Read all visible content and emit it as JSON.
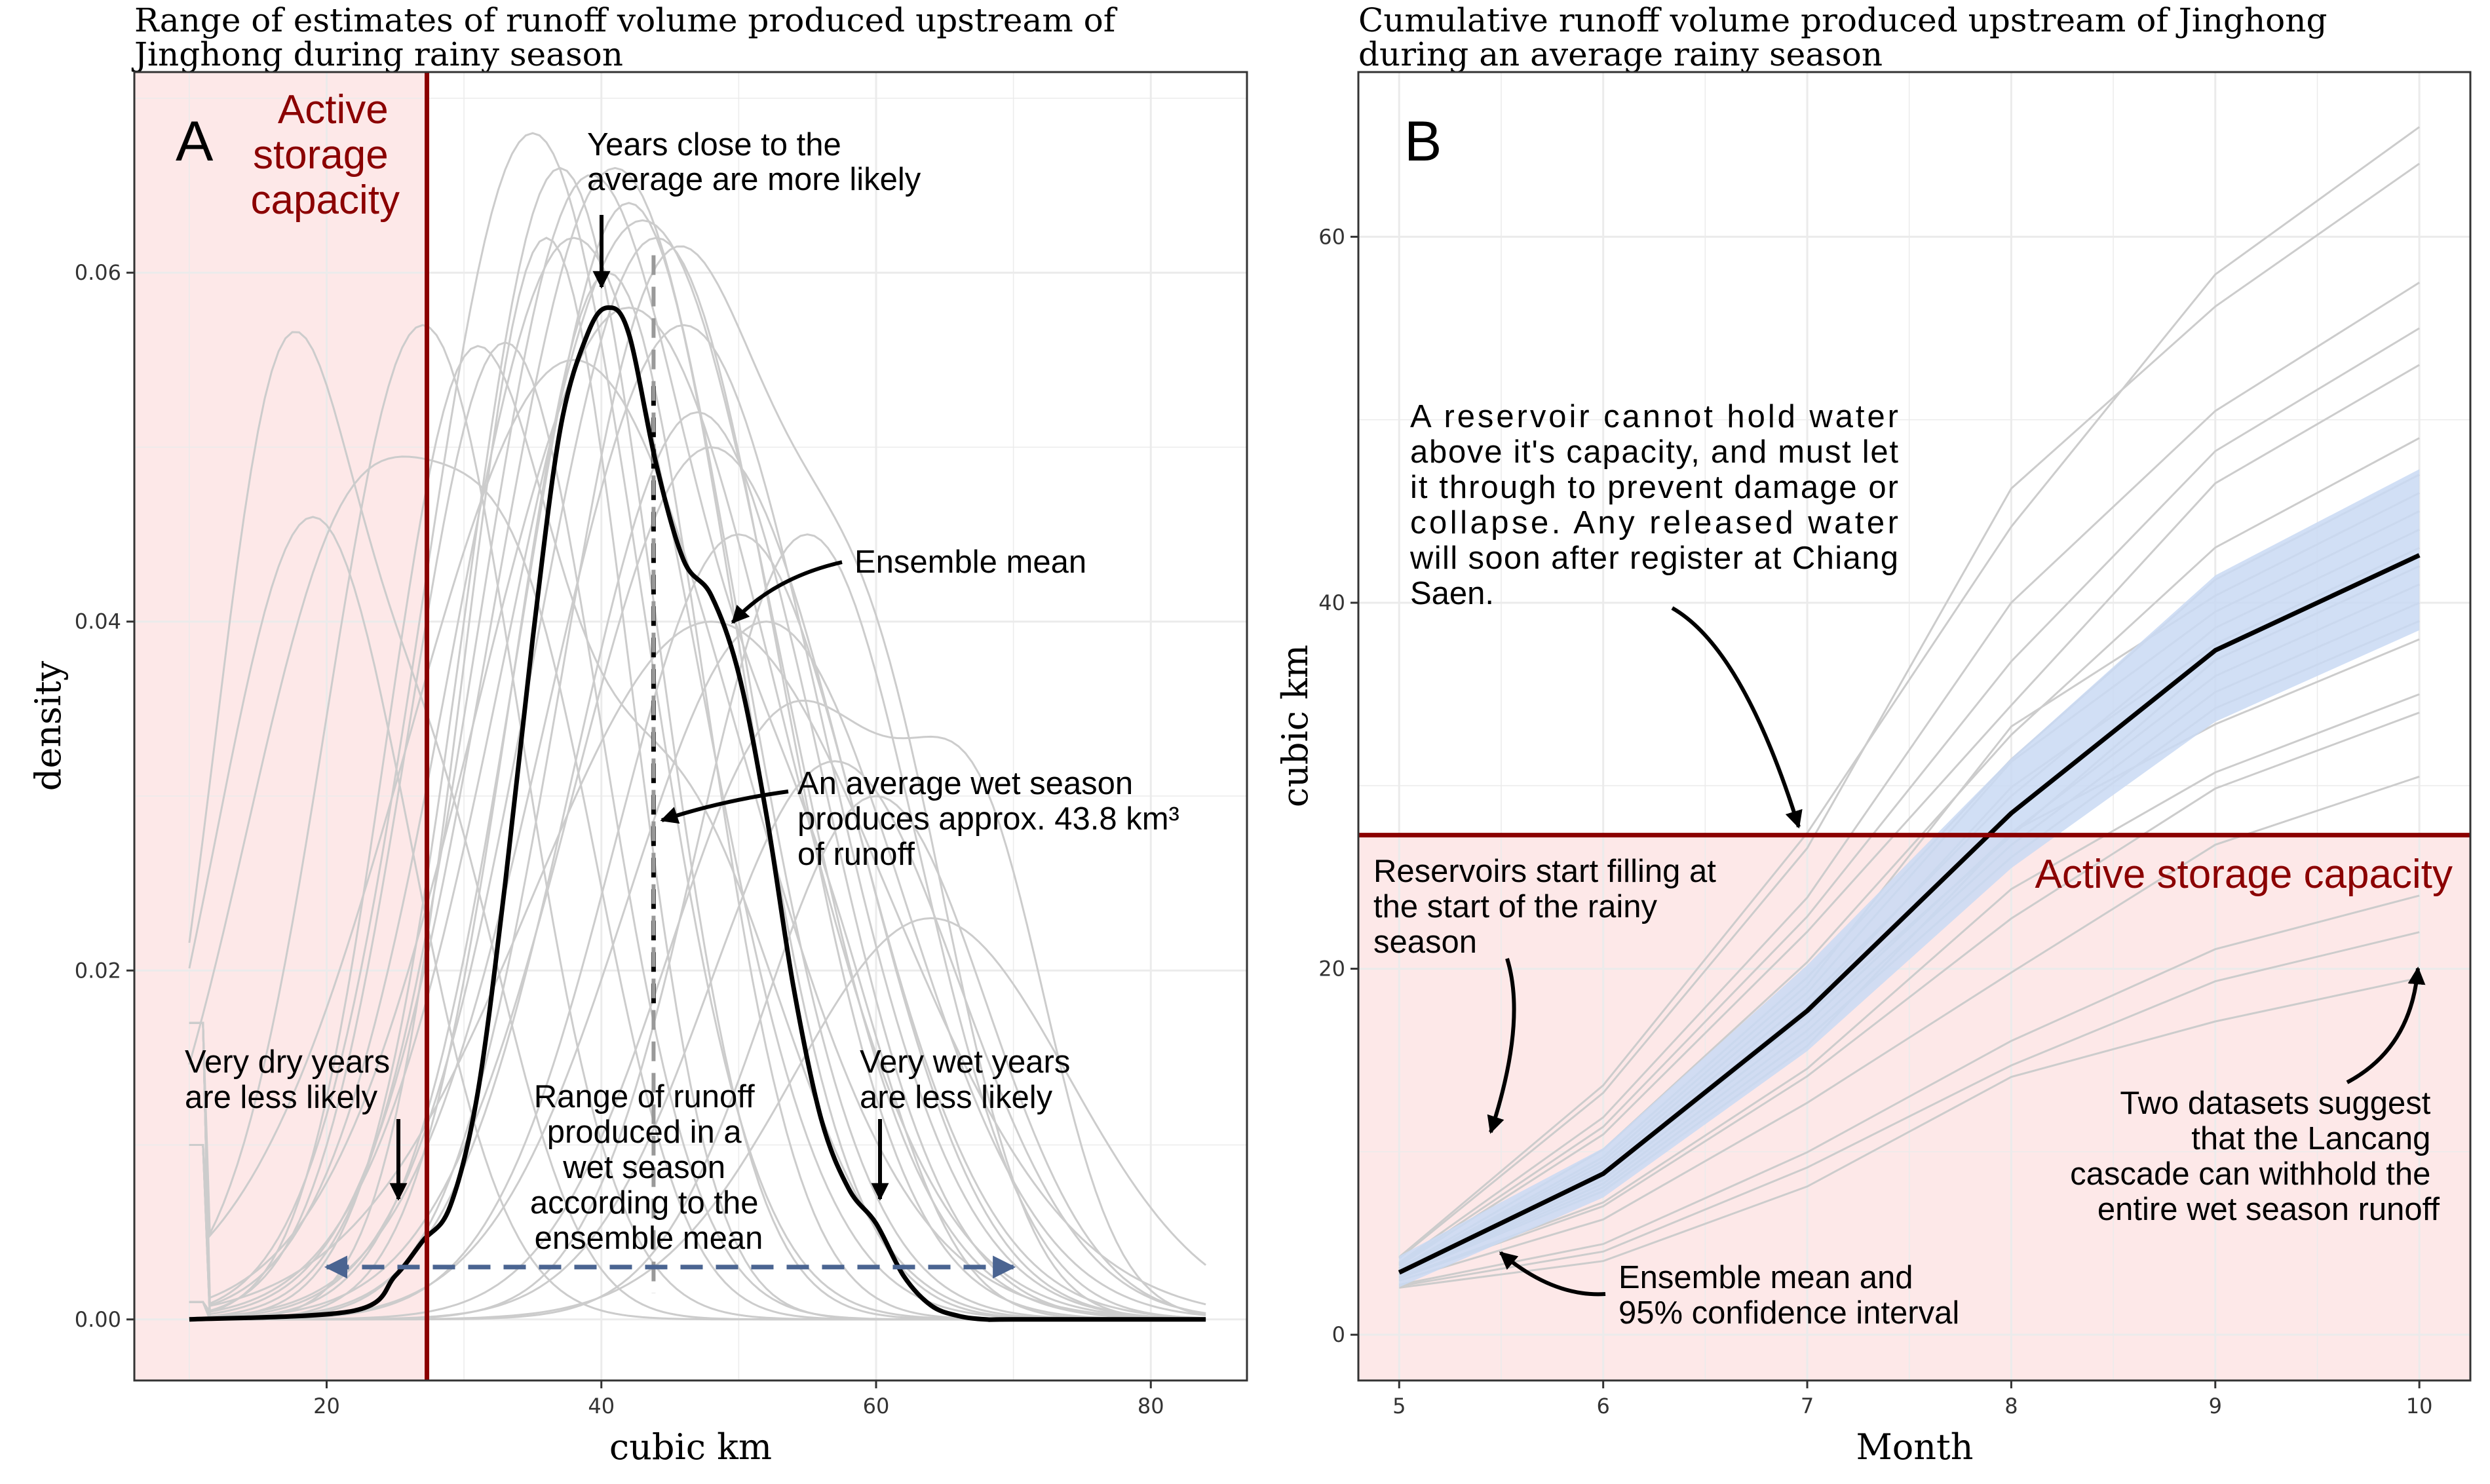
{
  "colors": {
    "storage_red": "#8B0000",
    "storage_fill": "#fde8e8",
    "grid": "#ebebeb",
    "ensemble_curve": "#cccccc",
    "ci_fill": "#c9d9f3",
    "range_arrow": "#4a6491",
    "mean_line": "#000000"
  },
  "chart_data": [
    {
      "type": "line",
      "panel_letter": "A",
      "title": [
        "Range of estimates of runoff volume produced upstream of",
        "Jinghong during rainy season"
      ],
      "xlabel": "cubic km",
      "ylabel": "density",
      "xlim": [
        6,
        87
      ],
      "ylim": [
        -0.0035,
        0.0715
      ],
      "x_ticks": [
        20,
        40,
        60,
        80
      ],
      "y_ticks": [
        0.0,
        0.02,
        0.04,
        0.06
      ],
      "y_tick_labels": [
        "0.00",
        "0.02",
        "0.04",
        "0.06"
      ],
      "grid": true,
      "active_storage_capacity_km3": 27.3,
      "active_storage_label": [
        "Active",
        "storage",
        "capacity"
      ],
      "ensemble_mean_km3": 43.8,
      "mean_density": {
        "name": "Ensemble mean",
        "x": [
          10,
          22,
          25,
          27,
          29,
          31,
          33,
          35,
          37,
          39,
          40.5,
          42,
          44,
          46,
          48,
          50,
          52,
          54,
          56,
          58,
          60,
          62,
          64,
          66,
          68,
          70,
          84
        ],
        "y": [
          0.0,
          0.0005,
          0.0025,
          0.0045,
          0.0065,
          0.013,
          0.025,
          0.039,
          0.051,
          0.0565,
          0.058,
          0.0565,
          0.049,
          0.0435,
          0.0415,
          0.037,
          0.029,
          0.019,
          0.0115,
          0.0075,
          0.0055,
          0.0025,
          0.0008,
          0.0002,
          0.0,
          0.0,
          0.0
        ]
      },
      "range_arrow_x": [
        20,
        70
      ],
      "range_arrow_y": 0.003,
      "annotations": {
        "likely": [
          "Years close to the",
          "average are more likely"
        ],
        "mean": [
          "Ensemble mean"
        ],
        "average": [
          "An average wet season",
          "produces approx. 43.8 km³",
          "of runoff"
        ],
        "dry": [
          "Very dry years",
          "are less likely"
        ],
        "wet": [
          "Very wet years",
          "are less likely"
        ],
        "range": [
          "Range of runoff",
          "produced in a",
          "wet season",
          "according to the",
          "ensemble mean"
        ]
      }
    },
    {
      "type": "line",
      "panel_letter": "B",
      "title": [
        "Cumulative runoff volume produced upstream of Jinghong",
        "during an average rainy season"
      ],
      "xlabel": "Month",
      "ylabel": "cubic km",
      "xlim": [
        4.8,
        10.25
      ],
      "ylim": [
        -2.5,
        69
      ],
      "x_ticks": [
        5,
        6,
        7,
        8,
        9,
        10
      ],
      "y_ticks": [
        0,
        20,
        40,
        60
      ],
      "grid": true,
      "active_storage_capacity_km3": 27.3,
      "active_storage_label": "Active storage capacity",
      "mean_cumulative": {
        "name": "Ensemble mean",
        "x": [
          5,
          6,
          7,
          8,
          9,
          10
        ],
        "y": [
          3.4,
          8.8,
          17.7,
          28.5,
          37.4,
          42.6
        ]
      },
      "ci_95": {
        "x": [
          5,
          6,
          7,
          8,
          9,
          10
        ],
        "lower": [
          2.6,
          7.5,
          15.5,
          25.5,
          33.5,
          38.5
        ],
        "upper": [
          4.3,
          10.2,
          20.2,
          31.5,
          41.5,
          47.3
        ]
      },
      "annotations": {
        "reservoir": [
          "A reservoir cannot hold water",
          "above it's capacity, and must let",
          "it through to prevent damage or",
          "collapse. Any released water",
          "will soon after register at Chiang",
          "Saen."
        ],
        "filling": [
          "Reservoirs start filling at",
          "the start of the rainy",
          "season"
        ],
        "withhold": [
          "Two datasets suggest",
          "that the Lancang",
          "cascade can withhold the",
          "entire wet season runoff"
        ],
        "ci": [
          "Ensemble mean and",
          "95% confidence interval"
        ]
      }
    }
  ]
}
